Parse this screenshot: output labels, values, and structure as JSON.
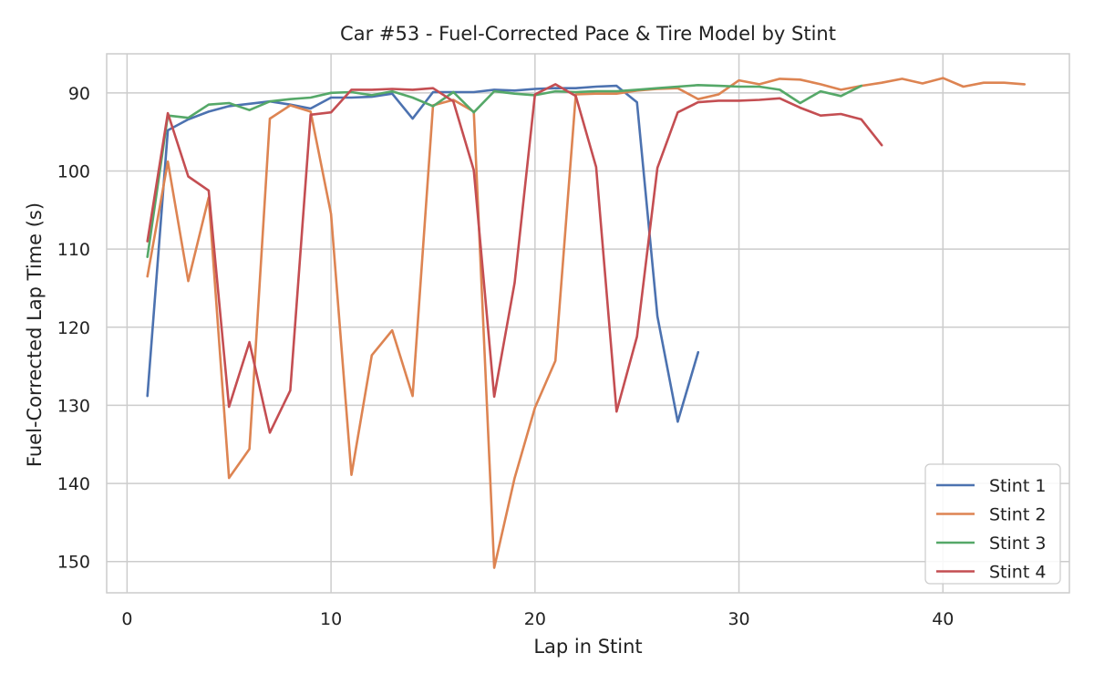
{
  "chart_data": {
    "type": "line",
    "title": "Car #53 - Fuel-Corrected Pace & Tire Model by Stint",
    "xlabel": "Lap in Stint",
    "ylabel": "Fuel-Corrected Lap Time (s)",
    "xlim": [
      -1,
      46.2
    ],
    "ylim": [
      154,
      85
    ],
    "y_inverted": true,
    "xticks": [
      0,
      10,
      20,
      30,
      40
    ],
    "yticks": [
      90,
      100,
      110,
      120,
      130,
      140,
      150
    ],
    "grid": true,
    "legend_position": "lower-right",
    "series": [
      {
        "name": "Stint 1",
        "color": "#4c72b0",
        "x": [
          1,
          2,
          3,
          4,
          5,
          6,
          7,
          8,
          9,
          10,
          11,
          12,
          13,
          14,
          15,
          16,
          17,
          18,
          19,
          20,
          21,
          22,
          23,
          24,
          25,
          26,
          27,
          28
        ],
        "y": [
          128.8,
          94.8,
          93.4,
          92.4,
          91.7,
          91.4,
          91.1,
          91.5,
          92.0,
          90.6,
          90.6,
          90.5,
          90.1,
          93.3,
          89.9,
          89.9,
          89.9,
          89.6,
          89.7,
          89.5,
          89.4,
          89.4,
          89.2,
          89.1,
          91.2,
          118.6,
          132.1,
          123.2
        ]
      },
      {
        "name": "Stint 2",
        "color": "#dd8452",
        "x": [
          1,
          2,
          3,
          4,
          5,
          6,
          7,
          8,
          9,
          10,
          11,
          12,
          13,
          14,
          15,
          16,
          17,
          18,
          19,
          20,
          21,
          22,
          23,
          24,
          25,
          26,
          27,
          28,
          29,
          30,
          31,
          32,
          33,
          34,
          35,
          36,
          37,
          38,
          39,
          40,
          41,
          42,
          43,
          44
        ],
        "y": [
          113.5,
          98.8,
          114.1,
          103.4,
          139.3,
          135.6,
          93.3,
          91.6,
          92.4,
          105.5,
          138.9,
          123.6,
          120.4,
          128.8,
          91.6,
          90.9,
          92.4,
          150.8,
          139.3,
          130.3,
          124.3,
          90.2,
          90.1,
          90.1,
          89.7,
          89.5,
          89.4,
          90.8,
          90.2,
          88.4,
          88.9,
          88.2,
          88.3,
          88.9,
          89.6,
          89.1,
          88.7,
          88.2,
          88.8,
          88.1,
          89.2,
          88.7,
          88.7,
          88.9
        ]
      },
      {
        "name": "Stint 3",
        "color": "#55a868",
        "x": [
          1,
          2,
          3,
          4,
          5,
          6,
          7,
          8,
          9,
          10,
          11,
          12,
          13,
          14,
          15,
          16,
          17,
          18,
          19,
          20,
          21,
          22,
          23,
          24,
          25,
          26,
          27,
          28,
          29,
          30,
          31,
          32,
          33,
          34,
          35,
          36
        ],
        "y": [
          111.0,
          92.9,
          93.2,
          91.5,
          91.3,
          92.2,
          91.1,
          90.8,
          90.6,
          90.0,
          89.9,
          90.3,
          89.8,
          90.6,
          91.7,
          89.9,
          92.5,
          89.8,
          90.1,
          90.3,
          89.8,
          89.9,
          89.8,
          89.8,
          89.6,
          89.4,
          89.2,
          89.0,
          89.1,
          89.2,
          89.2,
          89.6,
          91.3,
          89.8,
          90.4,
          89.1
        ]
      },
      {
        "name": "Stint 4",
        "color": "#c44e52",
        "x": [
          1,
          2,
          3,
          4,
          5,
          6,
          7,
          8,
          9,
          10,
          11,
          12,
          13,
          14,
          15,
          16,
          17,
          18,
          19,
          20,
          21,
          22,
          23,
          24,
          25,
          26,
          27,
          28,
          29,
          30,
          31,
          32,
          33,
          34,
          35,
          36,
          37
        ],
        "y": [
          109.0,
          92.6,
          100.7,
          102.5,
          130.2,
          121.9,
          133.5,
          128.1,
          92.8,
          92.5,
          89.6,
          89.6,
          89.5,
          89.6,
          89.4,
          91.1,
          99.9,
          128.9,
          114.3,
          90.2,
          88.9,
          90.4,
          99.5,
          130.8,
          121.2,
          99.6,
          92.5,
          91.2,
          91.0,
          91.0,
          90.9,
          90.7,
          91.9,
          92.9,
          92.7,
          93.4,
          96.7
        ]
      }
    ]
  }
}
